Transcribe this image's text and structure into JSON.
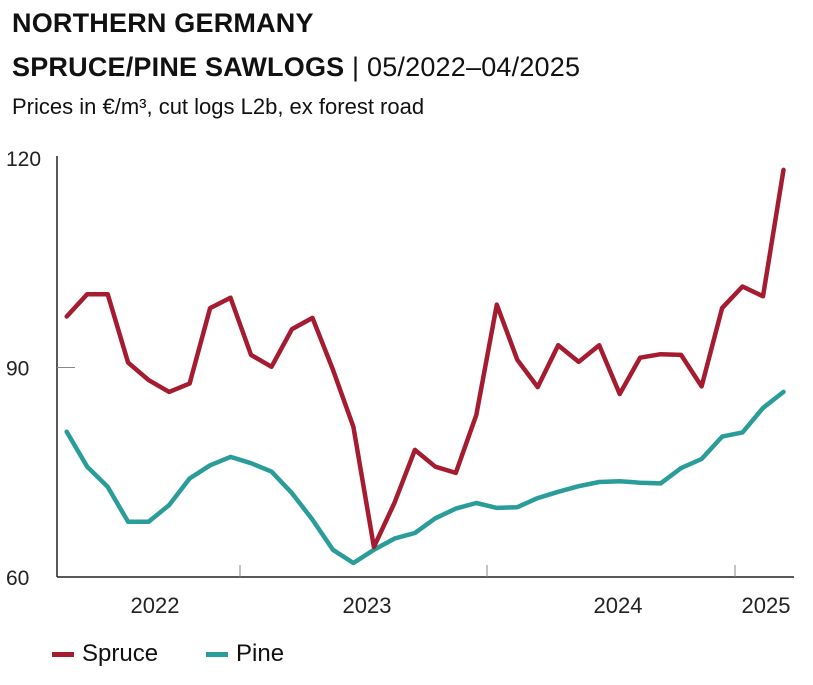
{
  "title_line1": "NORTHERN GERMANY",
  "title_line2": "SPRUCE/PINE SAWLOGS",
  "title_separator": " | ",
  "title_range": "05/2022–04/2025",
  "subtitle": "Prices in €/m³, cut logs L2b, ex forest road",
  "chart_data": {
    "type": "line",
    "title": "NORTHERN GERMANY SPRUCE/PINE SAWLOGS | 05/2022–04/2025",
    "subtitle": "Prices in €/m³, cut logs L2b, ex forest road",
    "ylim": [
      60,
      120
    ],
    "yticks": [
      60,
      90,
      120
    ],
    "ytick_labels": [
      "60",
      "90",
      "120"
    ],
    "xtick_labels": [
      "2022",
      "2023",
      "2024",
      "2025"
    ],
    "grid": false,
    "legend": "bottom-left",
    "x": [
      "2022-05",
      "2022-06",
      "2022-07",
      "2022-08",
      "2022-09",
      "2022-10",
      "2022-11",
      "2022-12",
      "2023-01",
      "2023-02",
      "2023-03",
      "2023-04",
      "2023-05",
      "2023-06",
      "2023-07",
      "2023-08",
      "2023-09",
      "2023-10",
      "2023-11",
      "2023-12",
      "2024-01",
      "2024-02",
      "2024-03",
      "2024-04",
      "2024-05",
      "2024-06",
      "2024-07",
      "2024-08",
      "2024-09",
      "2024-10",
      "2024-11",
      "2024-12",
      "2025-01",
      "2025-02",
      "2025-03",
      "2025-04"
    ],
    "series": [
      {
        "name": "Spruce",
        "color": "#a51c30",
        "values": [
          97.3,
          100.5,
          100.5,
          90.7,
          88.2,
          86.5,
          87.7,
          98.5,
          100.0,
          91.8,
          90.1,
          95.5,
          97.1,
          89.7,
          81.5,
          64.3,
          70.6,
          78.2,
          75.8,
          74.9,
          83.2,
          99.0,
          91.1,
          87.2,
          93.2,
          90.8,
          93.2,
          86.2,
          91.4,
          91.9,
          91.8,
          87.3,
          98.5,
          101.6,
          100.2,
          118.3
        ]
      },
      {
        "name": "Pine",
        "color": "#2a9d9a",
        "values": [
          80.8,
          75.8,
          72.9,
          67.9,
          67.9,
          70.3,
          74.1,
          76.0,
          77.2,
          76.3,
          75.1,
          72.0,
          68.2,
          63.9,
          62.0,
          63.9,
          65.5,
          66.3,
          68.4,
          69.8,
          70.6,
          69.9,
          70.0,
          71.3,
          72.2,
          73.0,
          73.6,
          73.7,
          73.5,
          73.4,
          75.6,
          76.9,
          80.1,
          80.7,
          84.2,
          86.5
        ]
      }
    ]
  }
}
